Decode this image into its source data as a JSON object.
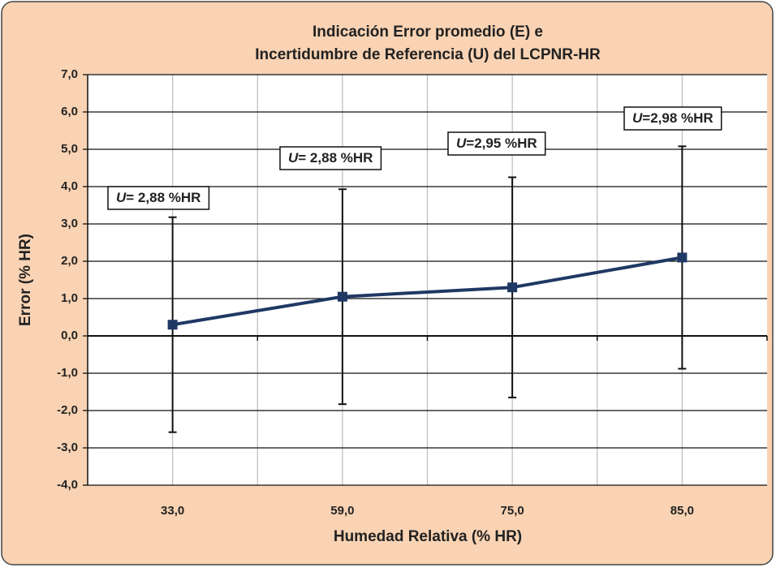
{
  "chart_data": {
    "type": "line",
    "title_lines": [
      "Indicación Error promedio (E) e",
      "Incertidumbre de Referencia (U) del LCPNR-HR"
    ],
    "x_label": "Humedad Relativa (% HR)",
    "y_label": "Error  (% HR)",
    "categories": [
      "33,0",
      "59,0",
      "75,0",
      "85,0"
    ],
    "series": [
      {
        "color": "#1f3864",
        "values": [
          0.3,
          1.05,
          1.3,
          2.1
        ],
        "errors": [
          2.88,
          2.88,
          2.95,
          2.98
        ]
      }
    ],
    "annotations": [
      {
        "symbol": "U",
        "text": "= 2,88 %HR"
      },
      {
        "symbol": "U",
        "text": "= 2,88 %HR"
      },
      {
        "symbol": "U",
        "text": "=2,95 %HR"
      },
      {
        "symbol": "U",
        "text": "=2,98 %HR"
      }
    ],
    "ylim": [
      -4,
      7
    ],
    "yticks": [
      {
        "value": -4,
        "label": "-4,0"
      },
      {
        "value": -3,
        "label": "-3,0"
      },
      {
        "value": -2,
        "label": "-2,0"
      },
      {
        "value": -1,
        "label": "-1,0"
      },
      {
        "value": 0,
        "label": "0,0"
      },
      {
        "value": 1,
        "label": "1,0"
      },
      {
        "value": 2,
        "label": "2,0"
      },
      {
        "value": 3,
        "label": "3,0"
      },
      {
        "value": 4,
        "label": "4,0"
      },
      {
        "value": 5,
        "label": "5,0"
      },
      {
        "value": 6,
        "label": "6,0"
      },
      {
        "value": 7,
        "label": "7,0"
      }
    ],
    "grid": true
  }
}
